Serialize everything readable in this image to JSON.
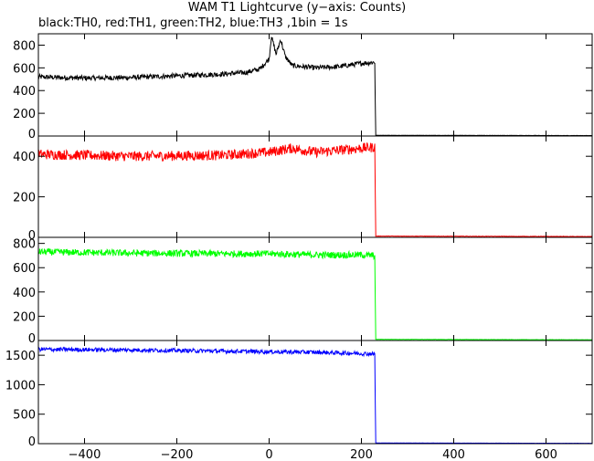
{
  "chart": {
    "title": "WAM T1 Lightcurve (y−axis: Counts)",
    "subtitle": "black:TH0, red:TH1, green:TH2, blue:TH3 ,1bin = 1s"
  },
  "chart_data": [
    {
      "type": "line",
      "series": [
        {
          "name": "TH0",
          "color": "#000000"
        }
      ],
      "x_range": [
        -500,
        700
      ],
      "ylim": [
        0,
        900
      ],
      "y_ticks": [
        0,
        200,
        400,
        600,
        800
      ],
      "x_ticks": [
        -400,
        -200,
        0,
        200,
        400,
        600
      ],
      "profile": {
        "x": [
          -500,
          -400,
          -300,
          -200,
          -100,
          -50,
          -20,
          0,
          5,
          15,
          25,
          35,
          50,
          100,
          150,
          200,
          229,
          231,
          700
        ],
        "y": [
          520,
          510,
          515,
          530,
          545,
          560,
          590,
          680,
          880,
          720,
          850,
          700,
          620,
          600,
          610,
          640,
          650,
          5,
          3
        ]
      },
      "noise": 22
    },
    {
      "type": "line",
      "series": [
        {
          "name": "TH1",
          "color": "#ff0000"
        }
      ],
      "x_range": [
        -500,
        700
      ],
      "ylim": [
        0,
        500
      ],
      "y_ticks": [
        0,
        200,
        400
      ],
      "x_ticks": [
        -400,
        -200,
        0,
        200,
        400,
        600
      ],
      "profile": {
        "x": [
          -500,
          -300,
          -100,
          0,
          50,
          100,
          200,
          229,
          231,
          700
        ],
        "y": [
          410,
          400,
          405,
          420,
          440,
          420,
          440,
          445,
          5,
          3
        ]
      },
      "noise": 25
    },
    {
      "type": "line",
      "series": [
        {
          "name": "TH2",
          "color": "#00ff00"
        }
      ],
      "x_range": [
        -500,
        700
      ],
      "ylim": [
        0,
        850
      ],
      "y_ticks": [
        0,
        200,
        400,
        600,
        800
      ],
      "x_ticks": [
        -400,
        -200,
        0,
        200,
        400,
        600
      ],
      "profile": {
        "x": [
          -500,
          -300,
          -100,
          0,
          100,
          200,
          229,
          231,
          700
        ],
        "y": [
          730,
          720,
          715,
          715,
          705,
          705,
          700,
          8,
          5
        ]
      },
      "noise": 28
    },
    {
      "type": "line",
      "series": [
        {
          "name": "TH3",
          "color": "#0000ff"
        }
      ],
      "x_range": [
        -500,
        700
      ],
      "ylim": [
        0,
        1750
      ],
      "y_ticks": [
        0,
        500,
        1000,
        1500
      ],
      "x_ticks": [
        -400,
        -200,
        0,
        200,
        400,
        600
      ],
      "x_tick_labels": [
        "−400",
        "−200",
        "0",
        "200",
        "400",
        "600"
      ],
      "profile": {
        "x": [
          -500,
          -300,
          -100,
          0,
          100,
          200,
          229,
          231,
          700
        ],
        "y": [
          1600,
          1590,
          1570,
          1560,
          1550,
          1530,
          1520,
          10,
          5
        ]
      },
      "noise": 35
    }
  ]
}
